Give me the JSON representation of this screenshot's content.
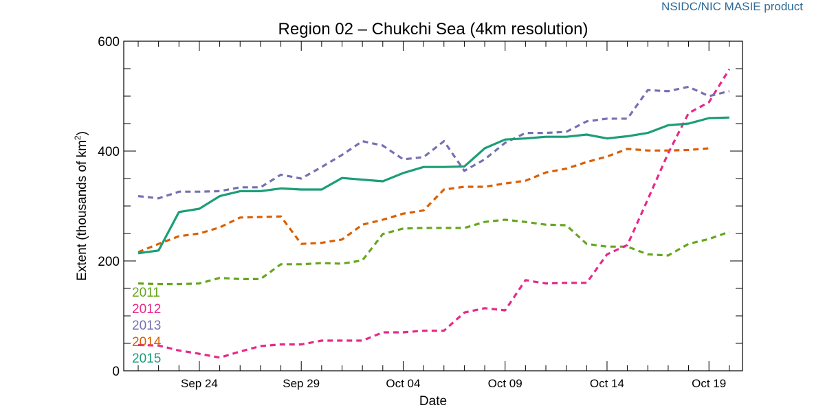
{
  "credit": "NSIDC/NIC MASIE product",
  "chart_data": {
    "type": "line",
    "title": "Region 02 – Chukchi Sea (4km resolution)",
    "xlabel": "Date",
    "ylabel": "Extent (thousands of km",
    "ylabel_sup": "2",
    "ylabel_close": ")",
    "ylim": [
      0,
      600
    ],
    "yticks": [
      0,
      200,
      400,
      600
    ],
    "y_minor_step": 50,
    "x_dates": [
      "Sep 21",
      "Sep 22",
      "Sep 23",
      "Sep 24",
      "Sep 25",
      "Sep 26",
      "Sep 27",
      "Sep 28",
      "Sep 29",
      "Sep 30",
      "Oct 01",
      "Oct 02",
      "Oct 03",
      "Oct 04",
      "Oct 05",
      "Oct 06",
      "Oct 07",
      "Oct 08",
      "Oct 09",
      "Oct 10",
      "Oct 11",
      "Oct 12",
      "Oct 13",
      "Oct 14",
      "Oct 15",
      "Oct 16",
      "Oct 17",
      "Oct 18",
      "Oct 19",
      "Oct 20"
    ],
    "xtick_labels": [
      {
        "label": "Sep 24",
        "index": 3
      },
      {
        "label": "Sep 29",
        "index": 8
      },
      {
        "label": "Oct 04",
        "index": 13
      },
      {
        "label": "Oct 09",
        "index": 18
      },
      {
        "label": "Oct 14",
        "index": 23
      },
      {
        "label": "Oct 19",
        "index": 28
      }
    ],
    "legend_position": "lower-left",
    "series": [
      {
        "name": "2011",
        "color": "#66a61e",
        "dashed": true,
        "values": [
          159,
          158,
          158,
          159,
          169,
          167,
          167,
          194,
          194,
          196,
          195,
          201,
          249,
          259,
          260,
          260,
          260,
          271,
          275,
          271,
          266,
          265,
          231,
          226,
          226,
          212,
          210,
          231,
          240,
          253
        ]
      },
      {
        "name": "2012",
        "color": "#e7298a",
        "dashed": true,
        "values": [
          47,
          46,
          37,
          31,
          24,
          35,
          45,
          48,
          48,
          55,
          55,
          55,
          70,
          70,
          73,
          73,
          106,
          114,
          110,
          165,
          159,
          160,
          160,
          212,
          229,
          312,
          396,
          469,
          489,
          549
        ]
      },
      {
        "name": "2013",
        "color": "#7570b3",
        "dashed": true,
        "values": [
          318,
          314,
          326,
          326,
          327,
          334,
          334,
          357,
          350,
          371,
          393,
          418,
          410,
          385,
          389,
          418,
          364,
          385,
          415,
          433,
          433,
          435,
          454,
          459,
          459,
          511,
          509,
          517,
          500,
          509
        ]
      },
      {
        "name": "2014",
        "color": "#d95f02",
        "dashed": true,
        "values": [
          216,
          231,
          245,
          250,
          261,
          279,
          280,
          281,
          231,
          233,
          239,
          266,
          275,
          286,
          292,
          330,
          335,
          335,
          341,
          346,
          361,
          368,
          380,
          390,
          404,
          401,
          401,
          402,
          405,
          null
        ]
      },
      {
        "name": "2015",
        "color": "#1b9e77",
        "dashed": false,
        "values": [
          214,
          219,
          289,
          295,
          318,
          327,
          327,
          332,
          330,
          330,
          351,
          348,
          345,
          360,
          371,
          371,
          372,
          405,
          421,
          423,
          426,
          426,
          430,
          423,
          427,
          433,
          447,
          450,
          460,
          461
        ]
      }
    ]
  }
}
